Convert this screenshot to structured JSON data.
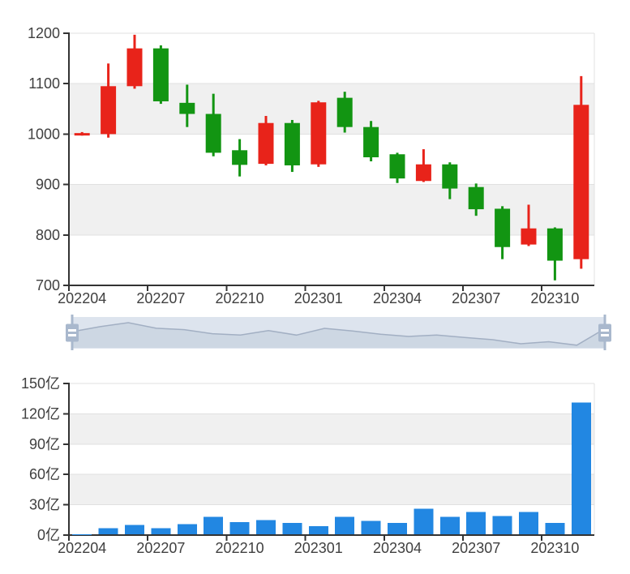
{
  "style": {
    "up_color": "#e8231a",
    "down_color": "#129512",
    "volume_bar_color": "#2287e2",
    "axis_line_color": "#333333",
    "axis_text_color": "#404040",
    "grid_line_color": "#e0e0e0",
    "split_area_color": "#f0f0f0",
    "axis_font_size": 18
  },
  "slider": {
    "type": "data-zoom-range-slider",
    "selected_range_percent": [
      0,
      100
    ],
    "shadow_series": "close",
    "track_color": "#dde4ee",
    "shadow_fill_color": "#cdd7e3",
    "shadow_line_color": "#a2afc3",
    "handle_color": "#a9b8cd",
    "handle_grip_color": "#ffffff"
  },
  "chart_data": [
    {
      "id": "kline",
      "type": "candlestick",
      "title": "",
      "legend": [],
      "grid": "horizontal",
      "split_area": true,
      "ylim": [
        700,
        1200
      ],
      "y_step": 100,
      "y_tick_labels": [
        "1200",
        "1100",
        "1000",
        "900",
        "800",
        "700"
      ],
      "x_tick_labels": [
        "202204",
        "202207",
        "202210",
        "202301",
        "202304",
        "202307",
        "202310"
      ],
      "label_interval": 3,
      "categories": [
        "202204",
        "202205",
        "202206",
        "202207",
        "202208",
        "202209",
        "202210",
        "202211",
        "202212",
        "202301",
        "202302",
        "202303",
        "202304",
        "202305",
        "202306",
        "202307",
        "202308",
        "202309",
        "202310",
        "202311"
      ],
      "candles": [
        {
          "month": "202204",
          "open": 1000,
          "close": 1002,
          "low": 997,
          "high": 1004
        },
        {
          "month": "202205",
          "open": 1000,
          "close": 1095,
          "low": 993,
          "high": 1140
        },
        {
          "month": "202206",
          "open": 1095,
          "close": 1170,
          "low": 1090,
          "high": 1197
        },
        {
          "month": "202207",
          "open": 1170,
          "close": 1065,
          "low": 1060,
          "high": 1176
        },
        {
          "month": "202208",
          "open": 1062,
          "close": 1040,
          "low": 1014,
          "high": 1098
        },
        {
          "month": "202209",
          "open": 1040,
          "close": 963,
          "low": 956,
          "high": 1080
        },
        {
          "month": "202210",
          "open": 968,
          "close": 939,
          "low": 916,
          "high": 990
        },
        {
          "month": "202211",
          "open": 941,
          "close": 1022,
          "low": 938,
          "high": 1036
        },
        {
          "month": "202212",
          "open": 1022,
          "close": 938,
          "low": 925,
          "high": 1028
        },
        {
          "month": "202301",
          "open": 940,
          "close": 1063,
          "low": 935,
          "high": 1066
        },
        {
          "month": "202302",
          "open": 1072,
          "close": 1014,
          "low": 1003,
          "high": 1084
        },
        {
          "month": "202303",
          "open": 1014,
          "close": 954,
          "low": 946,
          "high": 1026
        },
        {
          "month": "202304",
          "open": 960,
          "close": 912,
          "low": 903,
          "high": 963
        },
        {
          "month": "202305",
          "open": 907,
          "close": 940,
          "low": 905,
          "high": 970
        },
        {
          "month": "202306",
          "open": 940,
          "close": 892,
          "low": 871,
          "high": 944
        },
        {
          "month": "202307",
          "open": 895,
          "close": 851,
          "low": 838,
          "high": 902
        },
        {
          "month": "202308",
          "open": 852,
          "close": 776,
          "low": 752,
          "high": 857
        },
        {
          "month": "202309",
          "open": 781,
          "close": 813,
          "low": 778,
          "high": 860
        },
        {
          "month": "202310",
          "open": 813,
          "close": 749,
          "low": 710,
          "high": 815
        },
        {
          "month": "202311",
          "open": 752,
          "close": 1058,
          "low": 733,
          "high": 1115
        }
      ]
    },
    {
      "id": "volume",
      "type": "bar",
      "title": "",
      "unit": "亿",
      "grid": "horizontal",
      "split_area": true,
      "ylim": [
        0,
        150
      ],
      "y_step": 30,
      "y_tick_labels": [
        "150亿",
        "120亿",
        "90亿",
        "60亿",
        "30亿",
        "0亿"
      ],
      "x_tick_labels": [
        "202204",
        "202207",
        "202210",
        "202301",
        "202304",
        "202307",
        "202310"
      ],
      "label_interval": 3,
      "categories": [
        "202204",
        "202205",
        "202206",
        "202207",
        "202208",
        "202209",
        "202210",
        "202211",
        "202212",
        "202301",
        "202302",
        "202303",
        "202304",
        "202305",
        "202306",
        "202307",
        "202308",
        "202309",
        "202310",
        "202311"
      ],
      "values": [
        1,
        7,
        10,
        7,
        11,
        18,
        13,
        15,
        12,
        9,
        18,
        14,
        12,
        26,
        18,
        23,
        19,
        23,
        12,
        131
      ]
    }
  ]
}
